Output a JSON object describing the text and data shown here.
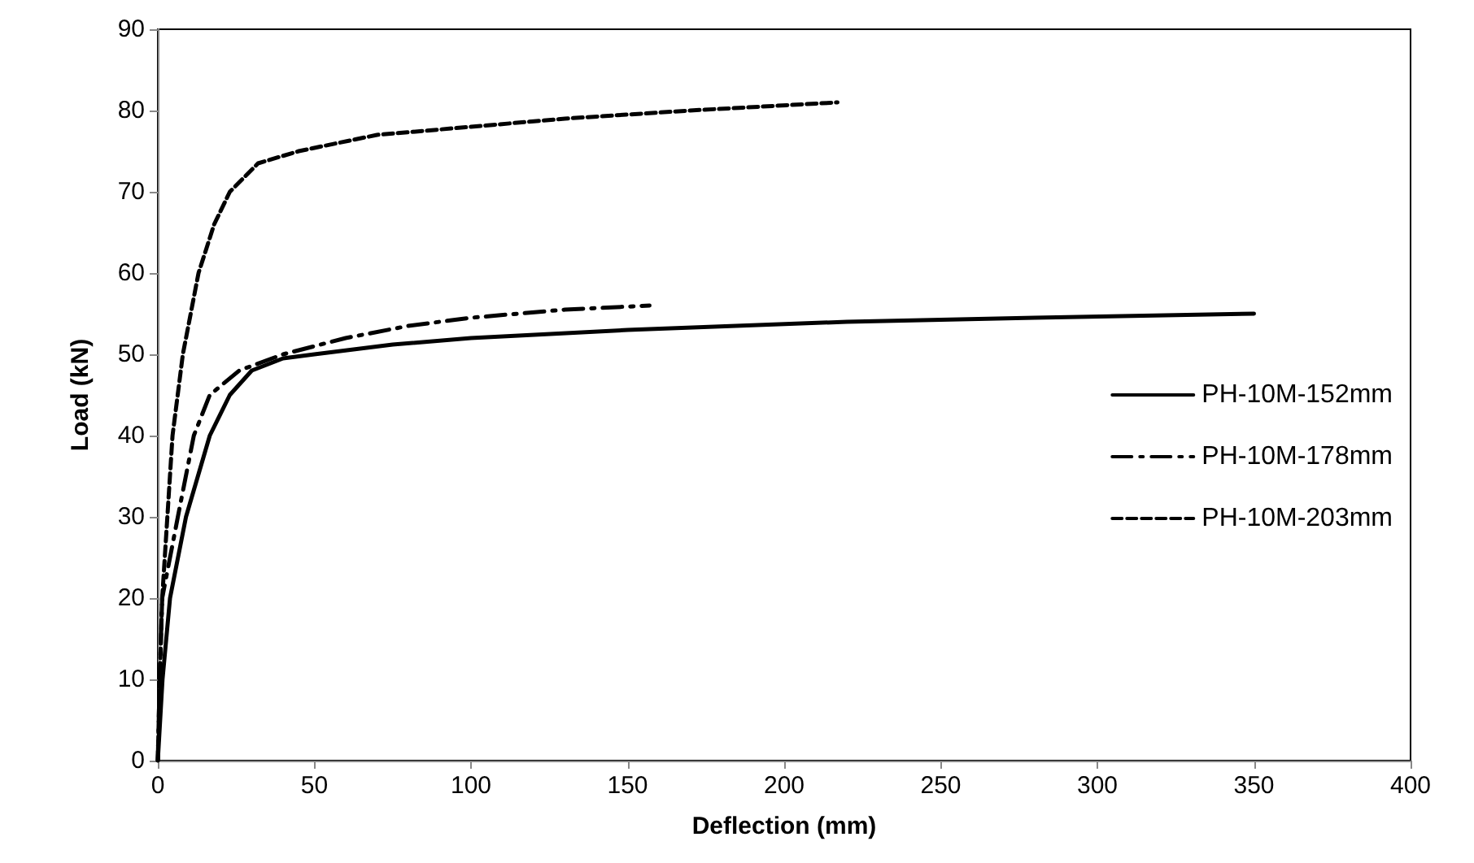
{
  "chart_data": {
    "type": "line",
    "xlabel": "Deflection (mm)",
    "ylabel": "Load (kN)",
    "xlim": [
      0,
      400
    ],
    "xticks": [
      0,
      50,
      100,
      150,
      200,
      250,
      300,
      350,
      400
    ],
    "ylim": [
      0,
      90
    ],
    "yticks": [
      0,
      10,
      20,
      30,
      40,
      50,
      60,
      70,
      80,
      90
    ],
    "grid": false,
    "legend": "right",
    "marker": "none",
    "series": [
      {
        "name": "PH-10M-152mm",
        "color": "#000000",
        "line_style": "solid",
        "x": [
          0,
          1.5,
          3.9,
          9,
          16.6,
          23,
          30,
          40,
          50,
          75,
          100,
          150,
          220,
          280,
          350
        ],
        "values": [
          0,
          10,
          20,
          30,
          40,
          45,
          48,
          49.5,
          50,
          51.2,
          52,
          53,
          54,
          54.5,
          55
        ]
      },
      {
        "name": "PH-10M-178mm",
        "color": "#000000",
        "line_style": "dashdot",
        "x": [
          0,
          0.6,
          1.4,
          6.4,
          11.5,
          16.6,
          26,
          40,
          60,
          80,
          100,
          130,
          157
        ],
        "values": [
          0,
          10,
          20,
          30,
          40,
          45,
          48,
          50,
          52,
          53.5,
          54.5,
          55.5,
          56
        ]
      },
      {
        "name": "PH-10M-203mm",
        "color": "#000000",
        "line_style": "dashed",
        "x": [
          0,
          0.6,
          1.4,
          4.7,
          8,
          13,
          18,
          23,
          32,
          45,
          70,
          100,
          130,
          170,
          217
        ],
        "values": [
          0,
          10,
          20,
          40,
          50,
          60,
          66,
          70,
          73.5,
          75,
          77,
          78,
          79,
          80,
          81
        ]
      }
    ]
  }
}
